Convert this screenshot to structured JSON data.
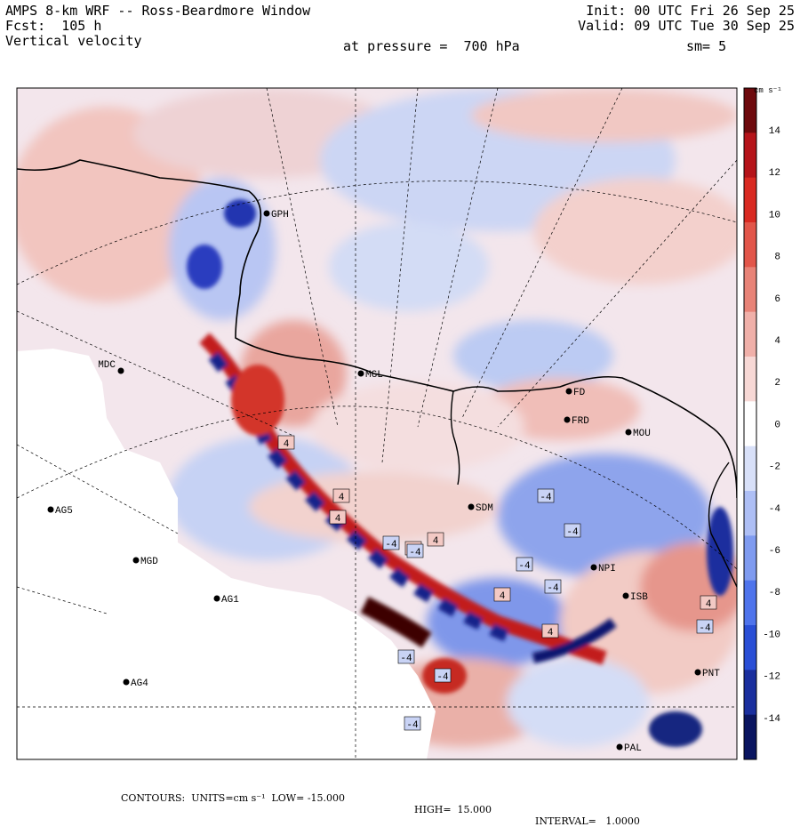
{
  "header": {
    "title": "AMPS 8-km WRF -- Ross-Beardmore Window",
    "forecast": "Fcst:  105 h",
    "field": "Vertical velocity",
    "init": "Init: 00 UTC Fri 26 Sep 25",
    "valid": "Valid: 09 UTC Tue 30 Sep 25",
    "pressure": "at pressure =  700 hPa",
    "smoothing": "sm= 5"
  },
  "colorbar": {
    "units": "cm s⁻¹",
    "tick_labels": [
      "14",
      "12",
      "10",
      "8",
      "6",
      "4",
      "2",
      "0",
      "-2",
      "-4",
      "-6",
      "-8",
      "-10",
      "-12",
      "-14"
    ],
    "colors": [
      "#0a1560",
      "#1a2f9e",
      "#2a4fd6",
      "#4f74ec",
      "#7f9bf0",
      "#aebff5",
      "#d8e0f8",
      "#ffffff",
      "#f7d8d5",
      "#f0b0a9",
      "#e88377",
      "#e2564a",
      "#d92a22",
      "#b5141a",
      "#6e0a0d"
    ]
  },
  "stations": [
    {
      "label": "GPH"
    },
    {
      "label": "MDC"
    },
    {
      "label": "MGL"
    },
    {
      "label": "FD"
    },
    {
      "label": "FRD"
    },
    {
      "label": "MOU"
    },
    {
      "label": "SDM"
    },
    {
      "label": "AG5"
    },
    {
      "label": "MGD"
    },
    {
      "label": "AG1"
    },
    {
      "label": "AG4"
    },
    {
      "label": "NPI"
    },
    {
      "label": "ISB"
    },
    {
      "label": "PNT"
    },
    {
      "label": "PAL"
    }
  ],
  "contour_labels": [
    "4",
    "4",
    "4",
    "-4",
    "-4",
    "-4",
    "-4",
    "4",
    "-4",
    "4",
    "-4",
    "4",
    "-4",
    "-4",
    "4",
    "-4",
    "4",
    "-4"
  ],
  "footer": {
    "contours": "CONTOURS:  UNITS=cm s⁻¹  LOW= -15.000",
    "high": "HIGH=  15.000",
    "interval": "INTERVAL=   1.0000"
  }
}
